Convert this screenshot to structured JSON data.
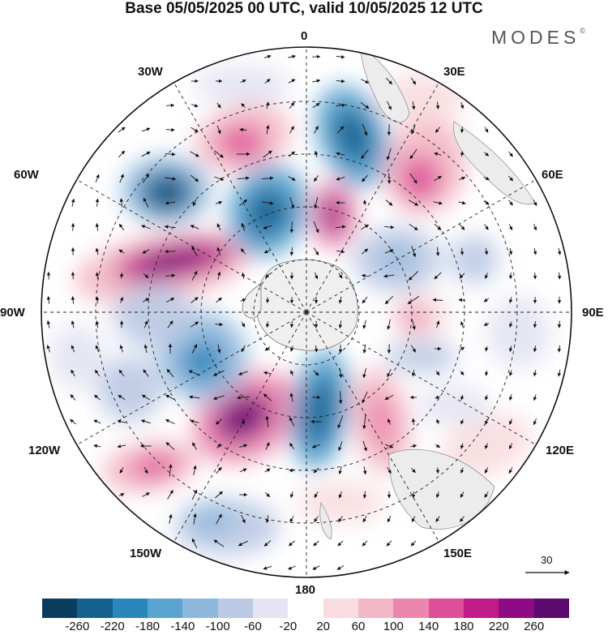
{
  "header": {
    "title": "Base 05/05/2025 00 UTC, valid 10/05/2025 12 UTC",
    "brand": "MODES",
    "brand_mark": "©"
  },
  "map": {
    "projection": "polar stereographic (south pole)",
    "longitude_labels": {
      "lon_0": "0",
      "lon_30e": "30E",
      "lon_60e": "60E",
      "lon_90e": "90E",
      "lon_120e": "120E",
      "lon_150e": "150E",
      "lon_180": "180",
      "lon_150w": "150W",
      "lon_120w": "120W",
      "lon_90w": "90W",
      "lon_60w": "60W",
      "lon_30w": "30W"
    },
    "reference_vector": {
      "value": "30"
    }
  },
  "colorbar": {
    "ticks": [
      "-260",
      "-220",
      "-180",
      "-140",
      "-100",
      "-60",
      "-20",
      "20",
      "60",
      "100",
      "140",
      "180",
      "220",
      "260"
    ],
    "colors": [
      "#0b3d5e",
      "#14618f",
      "#2b86bd",
      "#5aa4d1",
      "#8fb9dc",
      "#bcc9e4",
      "#e4e4f2",
      "#ffffff",
      "#f8dcdf",
      "#f3b8c5",
      "#eb86ad",
      "#de4f99",
      "#c11b88",
      "#8e0b85",
      "#5b0a6e"
    ]
  }
}
